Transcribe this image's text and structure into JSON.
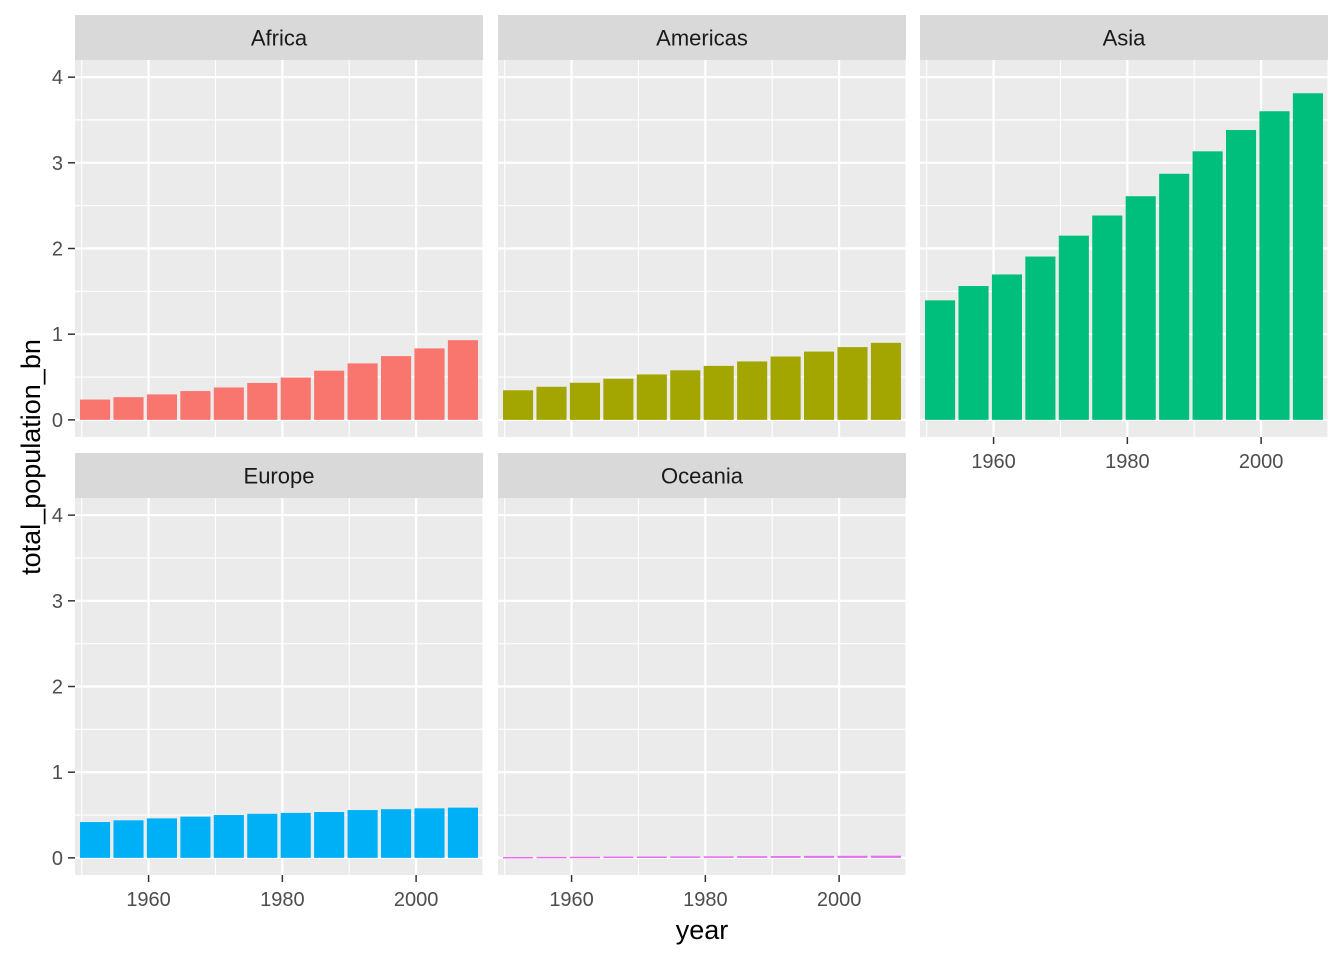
{
  "chart_data": {
    "type": "bar",
    "layout": "faceted",
    "xlabel": "year",
    "ylabel": "total_population_bn",
    "ylim": [
      0,
      4
    ],
    "yticks": [
      0,
      1,
      2,
      3,
      4
    ],
    "xlim": [
      1949,
      2010
    ],
    "xticks": [
      1960,
      1980,
      2000
    ],
    "grid": true,
    "legend": "none",
    "x": [
      1952,
      1957,
      1962,
      1967,
      1972,
      1977,
      1982,
      1987,
      1992,
      1997,
      2002,
      2007
    ],
    "facets": [
      {
        "name": "Africa",
        "color": "#F8766D",
        "values": [
          0.237,
          0.265,
          0.297,
          0.336,
          0.378,
          0.431,
          0.494,
          0.574,
          0.659,
          0.744,
          0.834,
          0.93
        ]
      },
      {
        "name": "Americas",
        "color": "#A3A500",
        "values": [
          0.345,
          0.386,
          0.433,
          0.48,
          0.53,
          0.578,
          0.63,
          0.682,
          0.739,
          0.797,
          0.849,
          0.899
        ]
      },
      {
        "name": "Asia",
        "color": "#00BF7D",
        "values": [
          1.395,
          1.562,
          1.697,
          1.906,
          2.15,
          2.385,
          2.61,
          2.872,
          3.134,
          3.383,
          3.602,
          3.812
        ]
      },
      {
        "name": "Europe",
        "color": "#00B0F6",
        "values": [
          0.418,
          0.438,
          0.461,
          0.481,
          0.5,
          0.514,
          0.525,
          0.535,
          0.558,
          0.568,
          0.578,
          0.586
        ]
      },
      {
        "name": "Oceania",
        "color": "#E76BF3",
        "values": [
          0.011,
          0.012,
          0.013,
          0.015,
          0.016,
          0.017,
          0.018,
          0.02,
          0.021,
          0.023,
          0.024,
          0.025
        ]
      }
    ]
  }
}
